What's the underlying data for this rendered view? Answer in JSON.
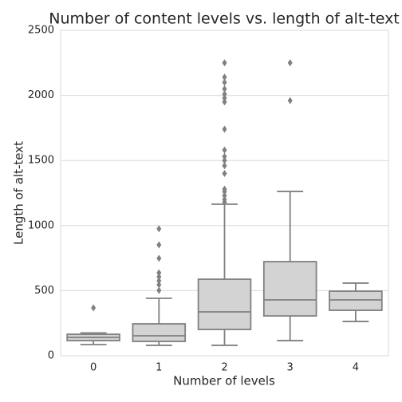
{
  "chart_data": {
    "type": "box",
    "title": "Number of content levels vs. length of alt-text",
    "x_label": "Number of levels",
    "y_label": "Length of alt-text",
    "categories": [
      "0",
      "1",
      "2",
      "3",
      "4"
    ],
    "boxes": [
      {
        "whislo": 86,
        "q1": 116,
        "med": 141,
        "q3": 165,
        "whishi": 175,
        "fliers": [
          368
        ]
      },
      {
        "whislo": 80,
        "q1": 110,
        "med": 153,
        "q3": 245,
        "whishi": 441,
        "fliers": [
          502,
          545,
          576,
          607,
          637,
          748,
          852,
          975
        ]
      },
      {
        "whislo": 80,
        "q1": 202,
        "med": 337,
        "q3": 588,
        "whishi": 1164,
        "fliers": [
          1180,
          1200,
          1230,
          1260,
          1280,
          1400,
          1460,
          1500,
          1530,
          1580,
          1740,
          1950,
          1980,
          2010,
          2050,
          2100,
          2140,
          2250
        ]
      },
      {
        "whislo": 116,
        "q1": 306,
        "med": 429,
        "q3": 723,
        "whishi": 1262,
        "fliers": [
          1960,
          2250
        ]
      },
      {
        "whislo": 263,
        "q1": 349,
        "med": 429,
        "q3": 496,
        "whishi": 558,
        "fliers": []
      }
    ],
    "color": "#d3d3d3",
    "edge_color": "#808080",
    "ylim": [
      0,
      2500
    ],
    "yticks": [
      0,
      500,
      1000,
      1500,
      2000,
      2500
    ],
    "grid": true
  }
}
